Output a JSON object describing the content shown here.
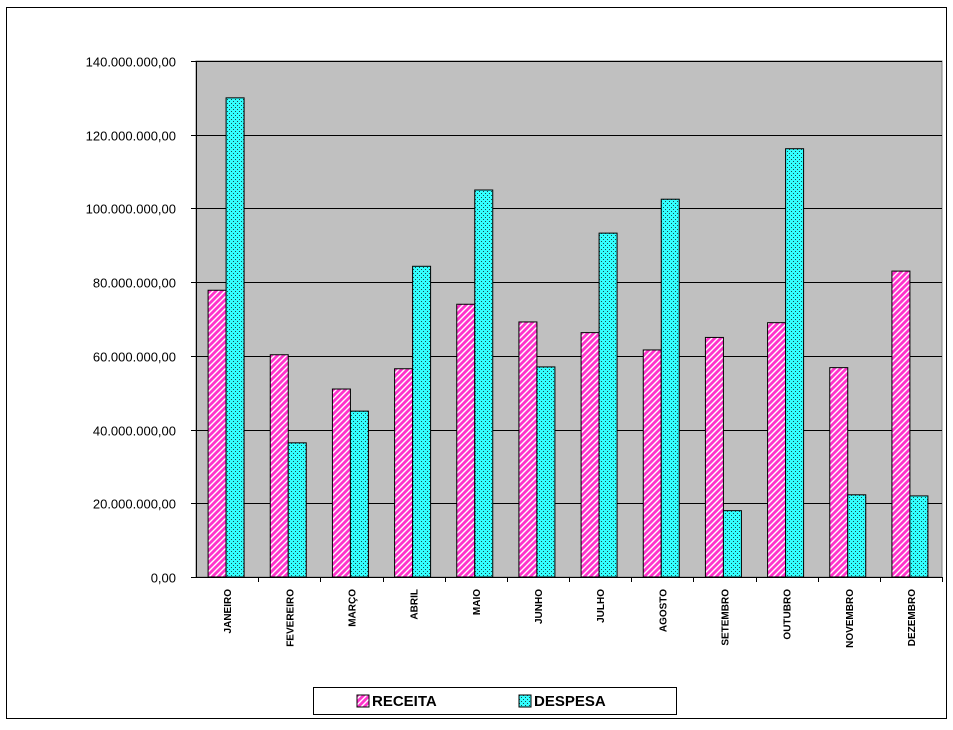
{
  "chart_data": {
    "type": "bar",
    "categories": [
      "JANEIRO",
      "FEVEREIRO",
      "MARÇO",
      "ABRIL",
      "MAIO",
      "JUNHO",
      "JULHO",
      "AGOSTO",
      "SETEMBRO",
      "OUTUBRO",
      "NOVEMBRO",
      "DEZEMBRO"
    ],
    "series": [
      {
        "name": "RECEITA",
        "color": "#ff33cc",
        "pattern": "diagonal-hatch",
        "values": [
          77800000,
          60300000,
          51000000,
          56500000,
          74000000,
          69200000,
          66300000,
          61600000,
          65000000,
          69000000,
          56800000,
          83000000
        ]
      },
      {
        "name": "DESPESA",
        "color": "#33ffff",
        "pattern": "dots",
        "values": [
          130000000,
          36400000,
          45000000,
          84300000,
          105000000,
          57000000,
          93300000,
          102500000,
          18000000,
          116200000,
          22300000,
          22000000
        ]
      }
    ],
    "ylim": [
      0,
      140000000
    ],
    "yticks": [
      0,
      20000000,
      40000000,
      60000000,
      80000000,
      100000000,
      120000000,
      140000000
    ],
    "ytick_labels": [
      "0,00",
      "20.000.000,00",
      "40.000.000,00",
      "60.000.000,00",
      "80.000.000,00",
      "100.000.000,00",
      "120.000.000,00",
      "140.000.000,00"
    ],
    "title": "",
    "xlabel": "",
    "ylabel": "",
    "grid": true,
    "plot_background": "#c0c0c0",
    "legend_position": "bottom"
  }
}
